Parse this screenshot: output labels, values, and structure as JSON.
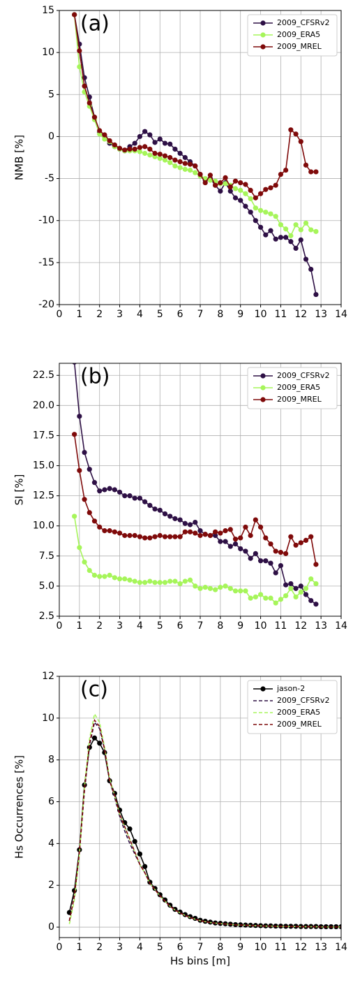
{
  "chart_data": [
    {
      "type": "line",
      "annotation": "(a)",
      "ylabel": "NMB [%]",
      "x": [
        0.75,
        1.0,
        1.25,
        1.5,
        1.75,
        2.0,
        2.25,
        2.5,
        2.75,
        3.0,
        3.25,
        3.5,
        3.75,
        4.0,
        4.25,
        4.5,
        4.75,
        5.0,
        5.25,
        5.5,
        5.75,
        6.0,
        6.25,
        6.5,
        6.75,
        7.0,
        7.25,
        7.5,
        7.75,
        8.0,
        8.25,
        8.5,
        8.75,
        9.0,
        9.25,
        9.5,
        9.75,
        10.0,
        10.25,
        10.5,
        10.75,
        11.0,
        11.25,
        11.5,
        11.75,
        12.0,
        12.25,
        12.5,
        12.75
      ],
      "series": [
        {
          "name": "2009_CFSRv2",
          "color": "#2e1045",
          "marker": true,
          "linestyle": "solid",
          "values": [
            14.5,
            11,
            7,
            4.7,
            2.3,
            0.5,
            0,
            -0.8,
            -1.2,
            -1.5,
            -1.7,
            -1.2,
            -0.8,
            0,
            0.6,
            0.2,
            -0.7,
            -0.3,
            -0.8,
            -0.9,
            -1.5,
            -2,
            -2.5,
            -3,
            -3.5,
            -4.5,
            -5.2,
            -5.0,
            -5.8,
            -6.5,
            -5.5,
            -6.5,
            -7.3,
            -7.6,
            -8.3,
            -9.0,
            -10,
            -10.8,
            -11.7,
            -11.2,
            -12.2,
            -12,
            -12,
            -12.5,
            -13.3,
            -12.3,
            -14.6,
            -15.8,
            -18.8
          ]
        },
        {
          "name": "2009_ERA5",
          "color": "#a6f55a",
          "marker": true,
          "linestyle": "solid",
          "values": [
            14.5,
            8.3,
            5.3,
            3.6,
            2,
            0.3,
            -0.3,
            -0.6,
            -1.2,
            -1.5,
            -1.7,
            -1.7,
            -1.7,
            -1.8,
            -2.0,
            -2.2,
            -2.4,
            -2.6,
            -2.8,
            -3.1,
            -3.5,
            -3.7,
            -3.9,
            -4.0,
            -4.3,
            -4.7,
            -5.0,
            -5.2,
            -5.3,
            -5.6,
            -5.6,
            -5.8,
            -6.2,
            -6.4,
            -6.8,
            -7.4,
            -8.5,
            -8.8,
            -9.0,
            -9.2,
            -9.5,
            -10.5,
            -11.0,
            -11.8,
            -10.5,
            -11.1,
            -10.3,
            -11.1,
            -11.3
          ]
        },
        {
          "name": "2009_MREL",
          "color": "#7f0a0a",
          "marker": true,
          "linestyle": "solid",
          "values": [
            14.5,
            10.2,
            6,
            4,
            2.3,
            0.7,
            0.2,
            -0.5,
            -1,
            -1.4,
            -1.6,
            -1.5,
            -1.5,
            -1.3,
            -1.2,
            -1.5,
            -2.0,
            -2.1,
            -2.3,
            -2.5,
            -2.8,
            -3.0,
            -3.2,
            -3.3,
            -3.5,
            -4.5,
            -5.5,
            -4.6,
            -5.8,
            -5.5,
            -4.9,
            -6.0,
            -5.3,
            -5.5,
            -5.7,
            -6.4,
            -7.3,
            -6.8,
            -6.3,
            -6.1,
            -5.8,
            -4.5,
            -4.0,
            0.8,
            0.3,
            -0.6,
            -3.4,
            -4.2,
            -4.2
          ]
        }
      ],
      "xlim": [
        0,
        14
      ],
      "xticks": [
        0,
        1,
        2,
        3,
        4,
        5,
        6,
        7,
        8,
        9,
        10,
        11,
        12,
        13,
        14
      ],
      "ylim": [
        -20,
        15
      ],
      "yticks": [
        -20,
        -15,
        -10,
        -5,
        0,
        5,
        10,
        15
      ],
      "grid": true,
      "legend": "upper right"
    },
    {
      "type": "line",
      "annotation": "(b)",
      "ylabel": "SI [%]",
      "x": [
        0.75,
        1.0,
        1.25,
        1.5,
        1.75,
        2.0,
        2.25,
        2.5,
        2.75,
        3.0,
        3.25,
        3.5,
        3.75,
        4.0,
        4.25,
        4.5,
        4.75,
        5.0,
        5.25,
        5.5,
        5.75,
        6.0,
        6.25,
        6.5,
        6.75,
        7.0,
        7.25,
        7.5,
        7.75,
        8.0,
        8.25,
        8.5,
        8.75,
        9.0,
        9.25,
        9.5,
        9.75,
        10.0,
        10.25,
        10.5,
        10.75,
        11.0,
        11.25,
        11.5,
        11.75,
        12.0,
        12.25,
        12.5,
        12.75
      ],
      "series": [
        {
          "name": "2009_CFSRv2",
          "color": "#2e1045",
          "marker": true,
          "linestyle": "solid",
          "values": [
            23.6,
            19.1,
            16.1,
            14.7,
            13.6,
            12.9,
            13.0,
            13.1,
            13.0,
            12.8,
            12.5,
            12.5,
            12.3,
            12.3,
            12.0,
            11.7,
            11.4,
            11.3,
            11.0,
            10.8,
            10.6,
            10.5,
            10.2,
            10.1,
            10.3,
            9.6,
            9.3,
            9.2,
            9.2,
            8.7,
            8.7,
            8.3,
            8.5,
            8.1,
            7.9,
            7.3,
            7.7,
            7.1,
            7.1,
            6.9,
            6.1,
            6.7,
            5.1,
            5.2,
            4.8,
            5.0,
            4.3,
            3.8,
            3.5
          ]
        },
        {
          "name": "2009_ERA5",
          "color": "#a6f55a",
          "marker": true,
          "linestyle": "solid",
          "values": [
            10.8,
            8.2,
            7.0,
            6.3,
            5.9,
            5.8,
            5.8,
            5.9,
            5.7,
            5.6,
            5.6,
            5.5,
            5.4,
            5.3,
            5.3,
            5.4,
            5.3,
            5.3,
            5.3,
            5.4,
            5.4,
            5.2,
            5.4,
            5.5,
            5.0,
            4.8,
            4.9,
            4.8,
            4.7,
            4.9,
            5.0,
            4.8,
            4.6,
            4.6,
            4.6,
            4.0,
            4.1,
            4.3,
            4.0,
            4.0,
            3.6,
            3.9,
            4.2,
            4.8,
            4.1,
            4.5,
            4.8,
            5.6,
            5.2
          ]
        },
        {
          "name": "2009_MREL",
          "color": "#7f0a0a",
          "marker": true,
          "linestyle": "solid",
          "values": [
            17.6,
            14.6,
            12.2,
            11.1,
            10.4,
            9.9,
            9.6,
            9.6,
            9.5,
            9.4,
            9.2,
            9.2,
            9.2,
            9.1,
            9.0,
            9.0,
            9.1,
            9.2,
            9.1,
            9.1,
            9.1,
            9.1,
            9.5,
            9.5,
            9.4,
            9.2,
            9.3,
            9.2,
            9.5,
            9.4,
            9.6,
            9.7,
            8.9,
            9.0,
            9.9,
            9.2,
            10.5,
            9.9,
            9.0,
            8.5,
            7.9,
            7.8,
            7.7,
            9.1,
            8.4,
            8.6,
            8.8,
            9.1,
            6.8
          ]
        }
      ],
      "xlim": [
        0,
        14
      ],
      "xticks": [
        0,
        1,
        2,
        3,
        4,
        5,
        6,
        7,
        8,
        9,
        10,
        11,
        12,
        13,
        14
      ],
      "ylim": [
        2.5,
        23.5
      ],
      "yticks": [
        2.5,
        {
          "value": 5,
          "label": "5.0"
        },
        7.5,
        {
          "value": 10,
          "label": "10.0"
        },
        12.5,
        {
          "value": 15,
          "label": "15.0"
        },
        17.5,
        {
          "value": 20,
          "label": "20.0"
        },
        22.5
      ],
      "grid": true,
      "legend": "upper right"
    },
    {
      "type": "line",
      "annotation": "(c)",
      "ylabel": "Hs Occurrences  [%]",
      "xlabel": "Hs bins [m]",
      "x": [
        0.5,
        0.75,
        1.0,
        1.25,
        1.5,
        1.75,
        2.0,
        2.25,
        2.5,
        2.75,
        3.0,
        3.25,
        3.5,
        3.75,
        4.0,
        4.25,
        4.5,
        4.75,
        5.0,
        5.25,
        5.5,
        5.75,
        6.0,
        6.25,
        6.5,
        6.75,
        7.0,
        7.25,
        7.5,
        7.75,
        8.0,
        8.25,
        8.5,
        8.75,
        9.0,
        9.25,
        9.5,
        9.75,
        10.0,
        10.25,
        10.5,
        10.75,
        11.0,
        11.25,
        11.5,
        11.75,
        12.0,
        12.25,
        12.5,
        12.75,
        13.0,
        13.25,
        13.5,
        13.75,
        14.0
      ],
      "series": [
        {
          "name": "jason-2",
          "color": "#000000",
          "marker": true,
          "linestyle": "solid",
          "values": [
            0.7,
            1.75,
            3.7,
            6.8,
            8.6,
            9.05,
            8.8,
            8.35,
            7.0,
            6.4,
            5.6,
            5.0,
            4.7,
            4.1,
            3.5,
            2.9,
            2.15,
            1.85,
            1.55,
            1.3,
            1.05,
            0.85,
            0.72,
            0.6,
            0.5,
            0.42,
            0.33,
            0.28,
            0.24,
            0.2,
            0.18,
            0.16,
            0.14,
            0.12,
            0.11,
            0.1,
            0.09,
            0.08,
            0.07,
            0.06,
            0.06,
            0.05,
            0.05,
            0.04,
            0.04,
            0.04,
            0.03,
            0.03,
            0.03,
            0.03,
            0.02,
            0.02,
            0.02,
            0.02,
            0.02
          ]
        },
        {
          "name": "2009_CFSRv2",
          "color": "#2e1045",
          "marker": false,
          "linestyle": "dashed",
          "values": [
            0.3,
            1.5,
            3.6,
            6.5,
            8.7,
            9.8,
            9.5,
            8.5,
            7.0,
            6.2,
            5.3,
            4.6,
            4.0,
            3.5,
            3.0,
            2.6,
            2.1,
            1.8,
            1.5,
            1.25,
            1.0,
            0.82,
            0.68,
            0.56,
            0.46,
            0.38,
            0.31,
            0.26,
            0.22,
            0.19,
            0.17,
            0.15,
            0.13,
            0.11,
            0.1,
            0.09,
            0.08,
            0.07,
            0.06,
            0.05,
            0.05,
            0.04,
            0.04,
            0.03,
            0.03,
            0.03,
            0.02,
            0.02,
            0.02,
            0.02,
            0.01,
            0.01,
            0.01,
            0.01,
            0.01
          ]
        },
        {
          "name": "2009_ERA5",
          "color": "#a6f55a",
          "marker": false,
          "linestyle": "dashed",
          "values": [
            0.15,
            1.3,
            3.5,
            6.7,
            9.0,
            10.2,
            9.8,
            8.6,
            7.1,
            6.3,
            5.4,
            4.8,
            4.2,
            3.6,
            3.0,
            2.6,
            2.1,
            1.8,
            1.5,
            1.25,
            1.0,
            0.82,
            0.68,
            0.56,
            0.46,
            0.38,
            0.31,
            0.26,
            0.22,
            0.19,
            0.17,
            0.15,
            0.13,
            0.11,
            0.1,
            0.09,
            0.08,
            0.07,
            0.06,
            0.05,
            0.05,
            0.04,
            0.04,
            0.03,
            0.03,
            0.03,
            0.02,
            0.02,
            0.02,
            0.02,
            0.01,
            0.01,
            0.01,
            0.01,
            0.01
          ]
        },
        {
          "name": "2009_MREL",
          "color": "#7f0a0a",
          "marker": false,
          "linestyle": "dashed",
          "values": [
            0.3,
            1.5,
            3.6,
            6.6,
            8.8,
            9.9,
            9.6,
            8.5,
            7.0,
            6.3,
            5.4,
            4.8,
            4.2,
            3.6,
            3.0,
            2.6,
            2.1,
            1.8,
            1.5,
            1.25,
            1.0,
            0.82,
            0.68,
            0.56,
            0.46,
            0.38,
            0.31,
            0.26,
            0.22,
            0.19,
            0.17,
            0.15,
            0.13,
            0.11,
            0.1,
            0.09,
            0.08,
            0.07,
            0.06,
            0.05,
            0.05,
            0.04,
            0.04,
            0.03,
            0.03,
            0.03,
            0.02,
            0.02,
            0.02,
            0.02,
            0.01,
            0.01,
            0.01,
            0.01,
            0.01
          ]
        }
      ],
      "xlim": [
        0,
        14
      ],
      "xticks": [
        0,
        1,
        2,
        3,
        4,
        5,
        6,
        7,
        8,
        9,
        10,
        11,
        12,
        13,
        14
      ],
      "ylim": [
        -0.5,
        12
      ],
      "yticks": [
        0,
        2,
        4,
        6,
        8,
        10,
        12
      ],
      "grid": true,
      "legend": "upper right"
    }
  ]
}
